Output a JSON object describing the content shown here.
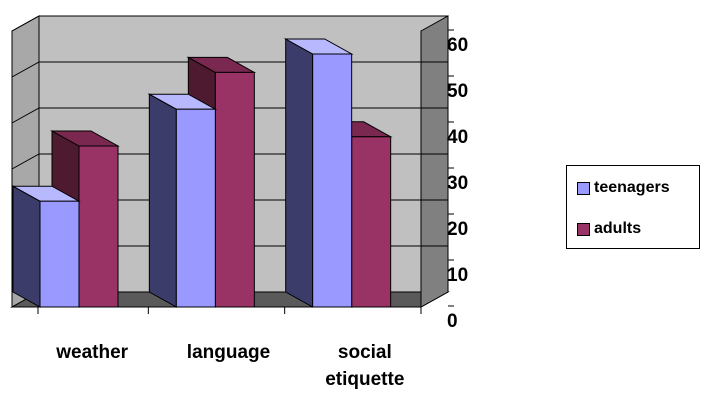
{
  "chart_data": {
    "type": "bar",
    "categories": [
      [
        "weather"
      ],
      [
        "language"
      ],
      [
        "social",
        "etiquette"
      ]
    ],
    "series": [
      {
        "name": "teenagers",
        "values": [
          23,
          43,
          55
        ]
      },
      {
        "name": "adults",
        "values": [
          35,
          51,
          37
        ]
      }
    ],
    "ylim": [
      0,
      60
    ],
    "yticks": [
      "0",
      "10",
      "20",
      "30",
      "40",
      "50",
      "60"
    ],
    "grid": true,
    "legend_position": "right",
    "colors": {
      "teenagers_front": "#9999ff",
      "teenagers_side": "#3c3c6a",
      "adults_front": "#993366",
      "adults_side": "#4e1a30",
      "wall": "#c0c0c0",
      "wall_side": "#808080",
      "floor": "#5a5a5a"
    }
  }
}
